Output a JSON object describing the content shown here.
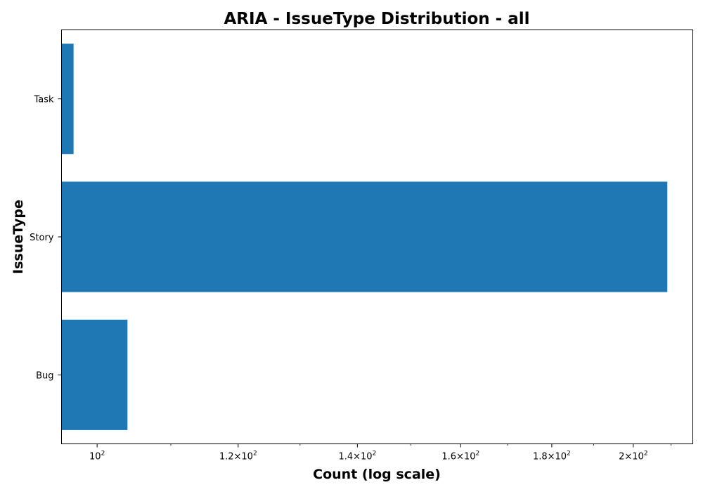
{
  "chart_data": {
    "type": "bar",
    "orientation": "horizontal",
    "title": "ARIA - IssueType Distribution - all",
    "xlabel": "Count (log scale)",
    "ylabel": "IssueType",
    "x_scale": "log",
    "xlim": [
      95.5,
      216
    ],
    "categories": [
      "Bug",
      "Story",
      "Task"
    ],
    "values": [
      104,
      209,
      97
    ],
    "bar_color": "#1f77b4",
    "grid": false,
    "x_ticks": [
      {
        "value": 100,
        "mantissa": "",
        "base": "10",
        "exp": "2"
      },
      {
        "value": 120,
        "mantissa": "1.2",
        "base": "10",
        "exp": "2"
      },
      {
        "value": 140,
        "mantissa": "1.4",
        "base": "10",
        "exp": "2"
      },
      {
        "value": 160,
        "mantissa": "1.6",
        "base": "10",
        "exp": "2"
      },
      {
        "value": 180,
        "mantissa": "1.8",
        "base": "10",
        "exp": "2"
      },
      {
        "value": 200,
        "mantissa": "2",
        "base": "10",
        "exp": "2"
      }
    ],
    "x_minor_ticks": [
      110,
      130,
      150,
      170,
      190,
      210
    ]
  }
}
